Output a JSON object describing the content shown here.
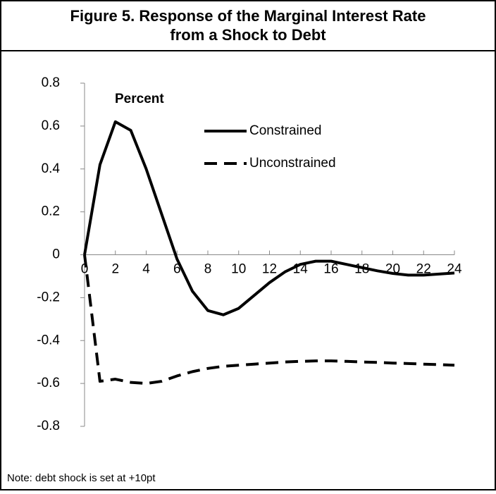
{
  "chart_data": {
    "type": "line",
    "title": [
      "Figure 5. Response of the Marginal Interest Rate",
      "from a Shock to Debt"
    ],
    "ylabel": "Percent",
    "note": "Note: debt shock is set at +10pt",
    "x": [
      0,
      1,
      2,
      3,
      4,
      5,
      6,
      7,
      8,
      9,
      10,
      11,
      12,
      13,
      14,
      15,
      16,
      17,
      18,
      19,
      20,
      21,
      22,
      23,
      24
    ],
    "series": [
      {
        "name": "Constrained",
        "color": "#000000",
        "dash": false,
        "values": [
          0,
          0.42,
          0.62,
          0.58,
          0.4,
          0.19,
          -0.02,
          -0.17,
          -0.26,
          -0.28,
          -0.25,
          -0.19,
          -0.13,
          -0.08,
          -0.045,
          -0.03,
          -0.03,
          -0.045,
          -0.06,
          -0.075,
          -0.087,
          -0.095,
          -0.095,
          -0.09,
          -0.085
        ]
      },
      {
        "name": "Unconstrained",
        "color": "#000000",
        "dash": true,
        "values": [
          0,
          -0.59,
          -0.58,
          -0.595,
          -0.6,
          -0.59,
          -0.565,
          -0.545,
          -0.53,
          -0.52,
          -0.515,
          -0.51,
          -0.505,
          -0.5,
          -0.497,
          -0.495,
          -0.495,
          -0.497,
          -0.5,
          -0.502,
          -0.505,
          -0.507,
          -0.51,
          -0.512,
          -0.515
        ]
      }
    ],
    "xlim": [
      0,
      24
    ],
    "xticks": [
      0,
      2,
      4,
      6,
      8,
      10,
      12,
      14,
      16,
      18,
      20,
      22,
      24
    ],
    "ylim": [
      -0.8,
      0.8
    ],
    "yticks": [
      -0.8,
      -0.6,
      -0.4,
      -0.2,
      0,
      0.2,
      0.4,
      0.6,
      0.8
    ],
    "grid": false
  }
}
